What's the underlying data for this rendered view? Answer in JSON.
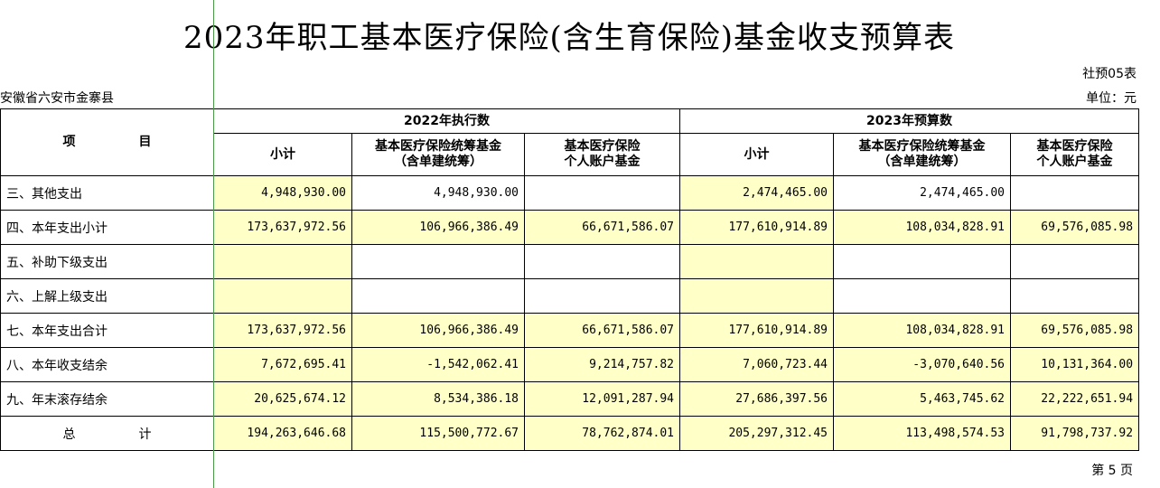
{
  "title": "2023年职工基本医疗保险(含生育保险)基金收支预算表",
  "form_code": "社预05表",
  "region": "安徽省六安市金寨县",
  "unit": "单位：元",
  "page_number": "第 5 页",
  "header": {
    "item_col_a": "项",
    "item_col_b": "目",
    "year_2022": "2022年执行数",
    "year_2023": "2023年预算数",
    "subtotal": "小计",
    "pooled_fund_l1": "基本医疗保险统筹基金",
    "pooled_fund_l2": "（含单建统筹）",
    "personal_account_l1": "基本医疗保险",
    "personal_account_l2": "个人账户基金"
  },
  "rows": [
    {
      "label": "三、其他支出",
      "v": [
        "4,948,930.00",
        "4,948,930.00",
        "",
        "2,474,465.00",
        "2,474,465.00",
        ""
      ]
    },
    {
      "label": "四、本年支出小计",
      "v": [
        "173,637,972.56",
        "106,966,386.49",
        "66,671,586.07",
        "177,610,914.89",
        "108,034,828.91",
        "69,576,085.98"
      ]
    },
    {
      "label": "五、补助下级支出",
      "v": [
        "",
        "",
        "",
        "",
        "",
        ""
      ]
    },
    {
      "label": "六、上解上级支出",
      "v": [
        "",
        "",
        "",
        "",
        "",
        ""
      ]
    },
    {
      "label": "七、本年支出合计",
      "v": [
        "173,637,972.56",
        "106,966,386.49",
        "66,671,586.07",
        "177,610,914.89",
        "108,034,828.91",
        "69,576,085.98"
      ]
    },
    {
      "label": "八、本年收支结余",
      "v": [
        "7,672,695.41",
        "-1,542,062.41",
        "9,214,757.82",
        "7,060,723.44",
        "-3,070,640.56",
        "10,131,364.00"
      ]
    },
    {
      "label": "九、年末滚存结余",
      "v": [
        "20,625,674.12",
        "8,534,386.18",
        "12,091,287.94",
        "27,686,397.56",
        "5,463,745.62",
        "22,222,651.94"
      ]
    }
  ],
  "total": {
    "label_a": "总",
    "label_b": "计",
    "v": [
      "194,263,646.68",
      "115,500,772.67",
      "78,762,874.01",
      "205,297,312.45",
      "113,498,574.53",
      "91,798,737.92"
    ]
  },
  "colors": {
    "highlight": "#ffffc8",
    "frozen_line": "#4a9a4a"
  }
}
